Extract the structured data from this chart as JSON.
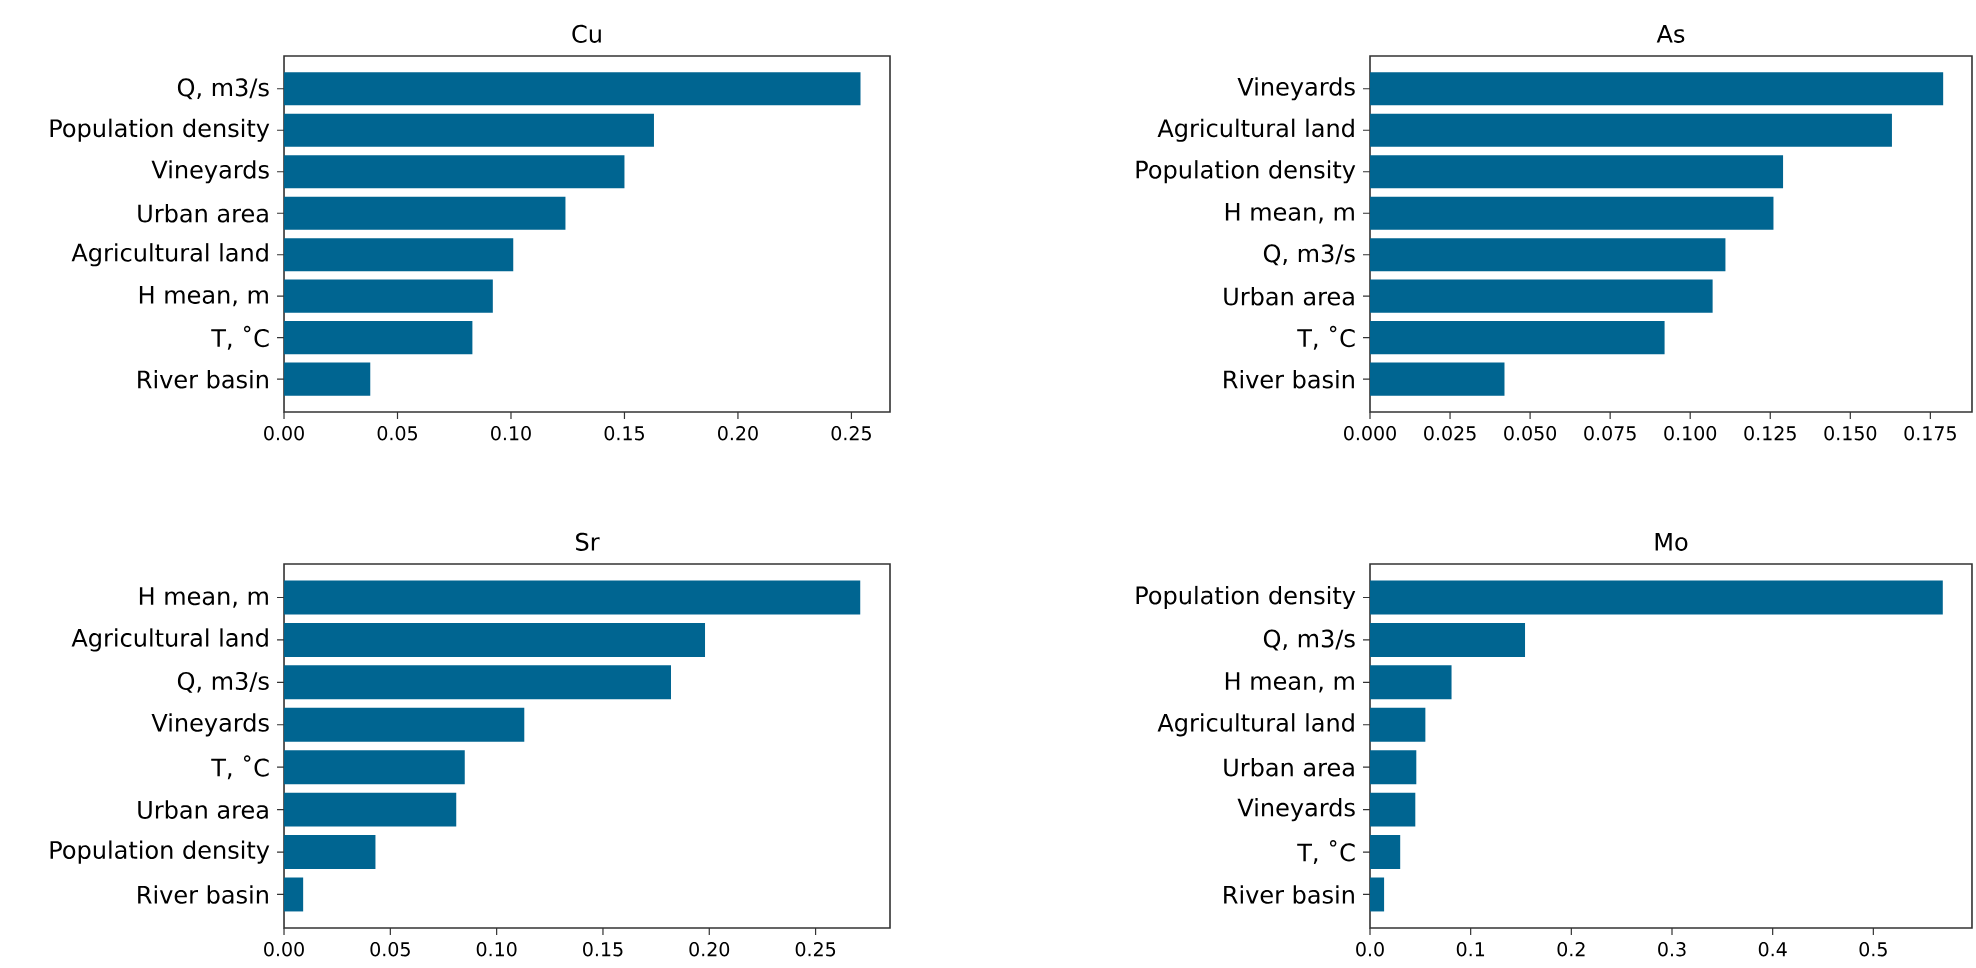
{
  "chart_data": [
    {
      "type": "bar",
      "orientation": "horizontal",
      "title": "Cu",
      "categories": [
        "Q, m3/s",
        "Population density",
        "Vineyards",
        "Urban area",
        "Agricultural land",
        "H mean, m",
        "T, ˚C",
        "River basin"
      ],
      "values": [
        0.254,
        0.163,
        0.15,
        0.124,
        0.101,
        0.092,
        0.083,
        0.038
      ],
      "color": "#006591",
      "xlim": [
        0,
        0.267
      ],
      "xticks": [
        {
          "value": 0,
          "label": "0.00"
        },
        {
          "value": 0.05,
          "label": "0.05"
        },
        {
          "value": 0.1,
          "label": "0.10"
        },
        {
          "value": 0.15,
          "label": "0.15"
        },
        {
          "value": 0.2,
          "label": "0.20"
        },
        {
          "value": 0.25,
          "label": "0.25"
        }
      ]
    },
    {
      "type": "bar",
      "orientation": "horizontal",
      "title": "As",
      "categories": [
        "Vineyards",
        "Agricultural land",
        "Population density",
        "H mean, m",
        "Q, m3/s",
        "Urban area",
        "T, ˚C",
        "River basin"
      ],
      "values": [
        0.179,
        0.163,
        0.129,
        0.126,
        0.111,
        0.107,
        0.092,
        0.042
      ],
      "color": "#006591",
      "xlim": [
        0,
        0.188
      ],
      "xticks": [
        {
          "value": 0,
          "label": "0.000"
        },
        {
          "value": 0.025,
          "label": "0.025"
        },
        {
          "value": 0.05,
          "label": "0.050"
        },
        {
          "value": 0.075,
          "label": "0.075"
        },
        {
          "value": 0.1,
          "label": "0.100"
        },
        {
          "value": 0.125,
          "label": "0.125"
        },
        {
          "value": 0.15,
          "label": "0.150"
        },
        {
          "value": 0.175,
          "label": "0.175"
        }
      ]
    },
    {
      "type": "bar",
      "orientation": "horizontal",
      "title": "Sr",
      "categories": [
        "H mean, m",
        "Agricultural land",
        "Q, m3/s",
        "Vineyards",
        "T, ˚C",
        "Urban area",
        "Population density",
        "River basin"
      ],
      "values": [
        0.271,
        0.198,
        0.182,
        0.113,
        0.085,
        0.081,
        0.043,
        0.009
      ],
      "color": "#006591",
      "xlim": [
        0,
        0.285
      ],
      "xticks": [
        {
          "value": 0,
          "label": "0.00"
        },
        {
          "value": 0.05,
          "label": "0.05"
        },
        {
          "value": 0.1,
          "label": "0.10"
        },
        {
          "value": 0.15,
          "label": "0.15"
        },
        {
          "value": 0.2,
          "label": "0.20"
        },
        {
          "value": 0.25,
          "label": "0.25"
        }
      ]
    },
    {
      "type": "bar",
      "orientation": "horizontal",
      "title": "Mo",
      "categories": [
        "Population density",
        "Q, m3/s",
        "H mean, m",
        "Agricultural land",
        "Urban area",
        "Vineyards",
        "T, ˚C",
        "River basin"
      ],
      "values": [
        0.569,
        0.154,
        0.081,
        0.055,
        0.046,
        0.045,
        0.03,
        0.014
      ],
      "color": "#006591",
      "xlim": [
        0,
        0.598
      ],
      "xticks": [
        {
          "value": 0,
          "label": "0.0"
        },
        {
          "value": 0.1,
          "label": "0.1"
        },
        {
          "value": 0.2,
          "label": "0.2"
        },
        {
          "value": 0.3,
          "label": "0.3"
        },
        {
          "value": 0.4,
          "label": "0.4"
        },
        {
          "value": 0.5,
          "label": "0.5"
        }
      ]
    }
  ]
}
